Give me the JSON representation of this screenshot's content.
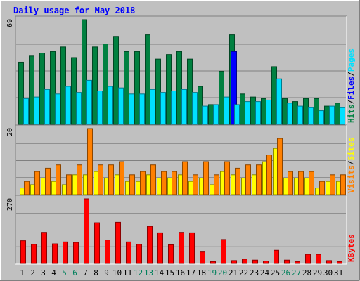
{
  "title": "Daily usage for May 2018",
  "chart_data": {
    "type": "bar",
    "title": "Daily usage for May 2018",
    "categories": [
      "1",
      "2",
      "3",
      "4",
      "5",
      "6",
      "7",
      "8",
      "9",
      "10",
      "11",
      "12",
      "13",
      "14",
      "15",
      "16",
      "17",
      "18",
      "19",
      "20",
      "21",
      "22",
      "23",
      "24",
      "25",
      "26",
      "27",
      "28",
      "29",
      "30",
      "31"
    ],
    "weekend_days": [
      "5",
      "6",
      "12",
      "13",
      "19",
      "20",
      "26",
      "27"
    ],
    "panels": [
      {
        "name": "hits-files-pages",
        "ymax": 69,
        "ymax_label": "69",
        "series": [
          {
            "name": "Hits",
            "color": "#008040",
            "values": [
              41,
              45,
              47,
              48,
              51,
              44,
              69,
              51,
              53,
              58,
              48,
              48,
              59,
              43,
              46,
              48,
              43,
              25,
              13,
              35,
              59,
              20,
              18,
              17,
              38,
              17,
              15,
              17,
              17,
              12,
              14
            ]
          },
          {
            "name": "Files",
            "color": "#0000ff",
            "values": [
              0,
              0,
              0,
              0,
              0,
              0,
              0,
              0,
              0,
              0,
              0,
              0,
              0,
              0,
              0,
              0,
              0,
              0,
              0,
              0,
              48,
              0,
              0,
              0,
              0,
              0,
              0,
              0,
              0,
              0,
              0
            ]
          },
          {
            "name": "Pages",
            "color": "#00e0ff",
            "values": [
              17,
              18,
              23,
              20,
              25,
              21,
              29,
              22,
              25,
              24,
              20,
              20,
              23,
              21,
              22,
              23,
              21,
              12,
              13,
              18,
              13,
              15,
              15,
              16,
              30,
              14,
              12,
              11,
              9,
              12,
              11
            ]
          }
        ]
      },
      {
        "name": "visits-sites",
        "ymax": 20,
        "ymax_label": "20",
        "series": [
          {
            "name": "Visits",
            "color": "#ff8000",
            "values": [
              4,
              7,
              8,
              9,
              6,
              9,
              20,
              9,
              9,
              10,
              6,
              7,
              9,
              7,
              7,
              10,
              6,
              10,
              6,
              10,
              8,
              9,
              9,
              12,
              17,
              7,
              7,
              7,
              4,
              6,
              6
            ]
          },
          {
            "name": "Sites",
            "color": "#ffff00",
            "values": [
              2,
              3,
              5,
              4,
              3,
              6,
              6,
              7,
              5,
              6,
              4,
              4,
              6,
              5,
              5,
              6,
              4,
              5,
              3,
              7,
              6,
              5,
              6,
              10,
              14,
              5,
              5,
              5,
              2,
              4,
              4
            ]
          }
        ]
      },
      {
        "name": "kbytes",
        "ymax": 270,
        "ymax_label": "270",
        "series": [
          {
            "name": "KBytes",
            "color": "#ff0000",
            "values": [
              95,
              80,
              130,
              82,
              90,
              88,
              270,
              170,
              98,
              172,
              90,
              80,
              155,
              128,
              78,
              130,
              128,
              48,
              8,
              100,
              12,
              18,
              14,
              10,
              55,
              14,
              8,
              38,
              38,
              12,
              8
            ]
          }
        ]
      }
    ],
    "side_legends": [
      {
        "panel": "hits-files-pages",
        "items": [
          {
            "text": "Hits",
            "color": "#008040"
          },
          {
            "text": "/",
            "color": "#000000"
          },
          {
            "text": "Files",
            "color": "#0000ff"
          },
          {
            "text": "/",
            "color": "#000000"
          },
          {
            "text": "Pages",
            "color": "#00e0ff"
          }
        ]
      },
      {
        "panel": "visits-sites",
        "items": [
          {
            "text": "Visits",
            "color": "#ff8000"
          },
          {
            "text": "/",
            "color": "#000000"
          },
          {
            "text": "Sites",
            "color": "#ffff00"
          }
        ]
      },
      {
        "panel": "kbytes",
        "items": [
          {
            "text": "KBytes",
            "color": "#ff0000"
          }
        ]
      }
    ],
    "colors": {
      "background": "#c0c0c0",
      "title": "#0000ff",
      "weekday_label": "#000000",
      "weekend_label": "#00805c",
      "grid": "#808080"
    }
  }
}
